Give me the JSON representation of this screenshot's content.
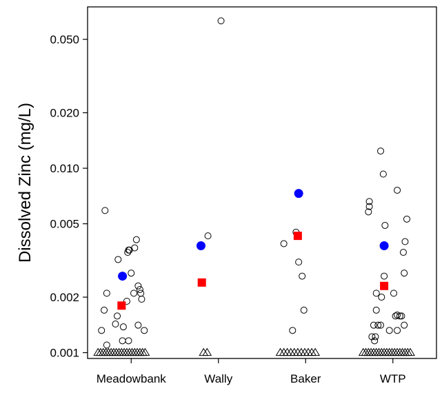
{
  "chart_data": {
    "type": "scatter",
    "title": "",
    "xlabel": "",
    "ylabel": "Dissolved Zinc (mg/L)",
    "y_scale": "log",
    "ylim": [
      0.00093,
      0.075
    ],
    "yticks": [
      {
        "value": 0.001,
        "label": "0.001"
      },
      {
        "value": 0.002,
        "label": "0.002"
      },
      {
        "value": 0.005,
        "label": "0.005"
      },
      {
        "value": 0.01,
        "label": "0.010"
      },
      {
        "value": 0.02,
        "label": "0.020"
      },
      {
        "value": 0.05,
        "label": "0.050"
      }
    ],
    "categories": [
      "Meadowbank",
      "Wally",
      "Baker",
      "WTP"
    ],
    "grid": false,
    "legend": "none",
    "colors": {
      "detected": "#000000",
      "mean": "#0000ff",
      "median": "#ff0000",
      "nondetect": "#000000"
    },
    "groups": [
      {
        "category": "Meadowbank",
        "detected": [
          [
            0.2,
            0.0059
          ],
          [
            0.22,
            0.0021
          ],
          [
            0.19,
            0.0017
          ],
          [
            0.16,
            0.00132
          ],
          [
            0.22,
            0.0011
          ],
          [
            0.35,
            0.0032
          ],
          [
            0.32,
            0.00143
          ],
          [
            0.34,
            0.00158
          ],
          [
            0.4,
            0.00116
          ],
          [
            0.41,
            0.00138
          ],
          [
            0.45,
            0.0019
          ],
          [
            0.5,
            0.0027
          ],
          [
            0.53,
            0.0021
          ],
          [
            0.46,
            0.0035
          ],
          [
            0.47,
            0.0036
          ],
          [
            0.48,
            0.0036
          ],
          [
            0.56,
            0.0041
          ],
          [
            0.54,
            0.0037
          ],
          [
            0.58,
            0.0023
          ],
          [
            0.6,
            0.0022
          ],
          [
            0.61,
            0.0021
          ],
          [
            0.62,
            0.00195
          ],
          [
            0.58,
            0.00141
          ],
          [
            0.65,
            0.00132
          ],
          [
            0.47,
            0.00116
          ]
        ],
        "nondetect": [
          [
            0.12,
            0.001
          ],
          [
            0.15,
            0.001
          ],
          [
            0.18,
            0.001
          ],
          [
            0.21,
            0.001
          ],
          [
            0.24,
            0.001
          ],
          [
            0.27,
            0.001
          ],
          [
            0.3,
            0.001
          ],
          [
            0.33,
            0.001
          ],
          [
            0.36,
            0.001
          ],
          [
            0.39,
            0.001
          ],
          [
            0.42,
            0.001
          ],
          [
            0.45,
            0.001
          ],
          [
            0.48,
            0.001
          ],
          [
            0.51,
            0.001
          ],
          [
            0.54,
            0.001
          ],
          [
            0.57,
            0.001
          ],
          [
            0.6,
            0.001
          ],
          [
            0.63,
            0.001
          ],
          [
            0.66,
            0.001
          ]
        ],
        "mean": [
          0.4,
          0.0026
        ],
        "median": [
          0.39,
          0.0018
        ]
      },
      {
        "category": "Wally",
        "detected": [
          [
            0.53,
            0.063
          ],
          [
            0.38,
            0.0043
          ]
        ],
        "nondetect": [
          [
            0.33,
            0.001
          ],
          [
            0.37,
            0.001
          ]
        ],
        "mean": [
          0.3,
          0.0038
        ],
        "median": [
          0.31,
          0.0024
        ]
      },
      {
        "category": "Baker",
        "detected": [
          [
            0.25,
            0.0039
          ],
          [
            0.39,
            0.0045
          ],
          [
            0.42,
            0.0031
          ],
          [
            0.46,
            0.0026
          ],
          [
            0.48,
            0.0017
          ],
          [
            0.35,
            0.00132
          ]
        ],
        "nondetect": [
          [
            0.21,
            0.001
          ],
          [
            0.25,
            0.001
          ],
          [
            0.29,
            0.001
          ],
          [
            0.33,
            0.001
          ],
          [
            0.37,
            0.001
          ],
          [
            0.41,
            0.001
          ],
          [
            0.45,
            0.001
          ],
          [
            0.49,
            0.001
          ],
          [
            0.53,
            0.001
          ],
          [
            0.57,
            0.001
          ],
          [
            0.61,
            0.001
          ]
        ],
        "mean": [
          0.42,
          0.0073
        ],
        "median": [
          0.41,
          0.0043
        ]
      },
      {
        "category": "WTP",
        "detected": [
          [
            0.36,
            0.0124
          ],
          [
            0.39,
            0.0093
          ],
          [
            0.55,
            0.0076
          ],
          [
            0.23,
            0.0066
          ],
          [
            0.23,
            0.0062
          ],
          [
            0.22,
            0.0058
          ],
          [
            0.66,
            0.0053
          ],
          [
            0.41,
            0.0049
          ],
          [
            0.64,
            0.004
          ],
          [
            0.62,
            0.0035
          ],
          [
            0.63,
            0.0027
          ],
          [
            0.4,
            0.0026
          ],
          [
            0.31,
            0.0021
          ],
          [
            0.51,
            0.0021
          ],
          [
            0.37,
            0.002
          ],
          [
            0.31,
            0.0017
          ],
          [
            0.55,
            0.0016
          ],
          [
            0.53,
            0.00158
          ],
          [
            0.58,
            0.00158
          ],
          [
            0.6,
            0.00158
          ],
          [
            0.28,
            0.00141
          ],
          [
            0.33,
            0.00141
          ],
          [
            0.36,
            0.00141
          ],
          [
            0.63,
            0.00141
          ],
          [
            0.46,
            0.00132
          ],
          [
            0.55,
            0.00132
          ],
          [
            0.26,
            0.00122
          ],
          [
            0.3,
            0.00122
          ],
          [
            0.29,
            0.00116
          ]
        ],
        "nondetect": [
          [
            0.16,
            0.001
          ],
          [
            0.19,
            0.001
          ],
          [
            0.22,
            0.001
          ],
          [
            0.25,
            0.001
          ],
          [
            0.28,
            0.001
          ],
          [
            0.31,
            0.001
          ],
          [
            0.34,
            0.001
          ],
          [
            0.37,
            0.001
          ],
          [
            0.4,
            0.001
          ],
          [
            0.43,
            0.001
          ],
          [
            0.46,
            0.001
          ],
          [
            0.49,
            0.001
          ],
          [
            0.52,
            0.001
          ],
          [
            0.55,
            0.001
          ],
          [
            0.58,
            0.001
          ],
          [
            0.61,
            0.001
          ],
          [
            0.64,
            0.001
          ],
          [
            0.67,
            0.001
          ],
          [
            0.7,
            0.001
          ]
        ],
        "mean": [
          0.4,
          0.0038
        ],
        "median": [
          0.4,
          0.0023
        ]
      }
    ]
  }
}
